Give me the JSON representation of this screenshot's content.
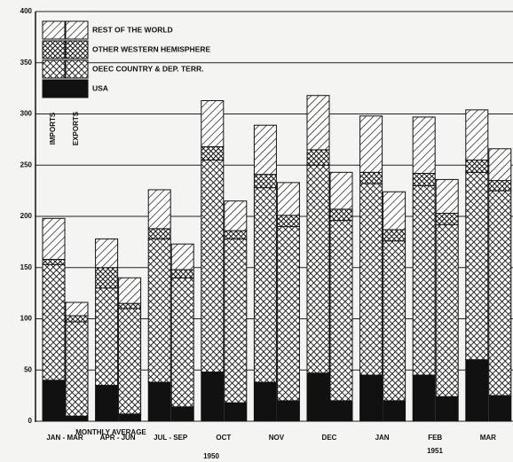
{
  "chart_data": {
    "type": "paired_stacked_bar",
    "bar_groups": [
      "IMPORTS",
      "EXPORTS"
    ],
    "categories": [
      "JAN - MAR",
      "APR - JUN",
      "JUL - SEP",
      "OCT",
      "NOV",
      "DEC",
      "JAN",
      "FEB",
      "MAR"
    ],
    "series": [
      {
        "name": "USA",
        "pattern": "solid",
        "values": [
          [
            40,
            5
          ],
          [
            35,
            7
          ],
          [
            38,
            14
          ],
          [
            48,
            18
          ],
          [
            38,
            20
          ],
          [
            47,
            20
          ],
          [
            45,
            20
          ],
          [
            45,
            24
          ],
          [
            60,
            25
          ]
        ]
      },
      {
        "name": "OEEC COUNTRY  & DEP. TERR.",
        "pattern": "crosshatch",
        "values": [
          [
            113,
            92
          ],
          [
            95,
            103
          ],
          [
            140,
            126
          ],
          [
            207,
            160
          ],
          [
            190,
            170
          ],
          [
            203,
            176
          ],
          [
            187,
            156
          ],
          [
            185,
            168
          ],
          [
            183,
            200
          ]
        ]
      },
      {
        "name": "OTHER WESTERN HEMISPHERE",
        "pattern": "dense-crosshatch",
        "values": [
          [
            5,
            6
          ],
          [
            20,
            5
          ],
          [
            10,
            8
          ],
          [
            13,
            8
          ],
          [
            13,
            11
          ],
          [
            15,
            11
          ],
          [
            11,
            11
          ],
          [
            12,
            11
          ],
          [
            12,
            10
          ]
        ]
      },
      {
        "name": "REST OF THE WORLD",
        "pattern": "hatch",
        "values": [
          [
            40,
            13
          ],
          [
            28,
            25
          ],
          [
            38,
            25
          ],
          [
            45,
            29
          ],
          [
            48,
            32
          ],
          [
            53,
            36
          ],
          [
            55,
            37
          ],
          [
            55,
            33
          ],
          [
            49,
            31
          ]
        ]
      }
    ],
    "annotations": [
      "MONTHLY AVERAGE",
      "1950",
      "1951"
    ],
    "ylim": [
      0,
      400
    ],
    "yticks": [
      0,
      50,
      100,
      150,
      200,
      250,
      300,
      350,
      400
    ],
    "grid": true,
    "legend": "upper left"
  }
}
